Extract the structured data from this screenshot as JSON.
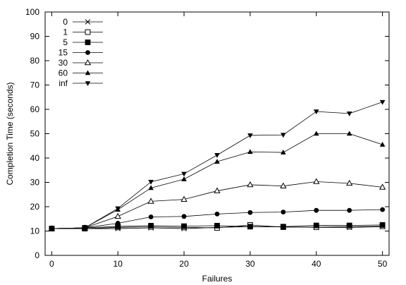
{
  "chart_data": {
    "type": "line",
    "title": "",
    "xlabel": "Failures",
    "ylabel": "Completion Time (seconds)",
    "xlim": [
      -1,
      51
    ],
    "ylim": [
      0,
      100
    ],
    "xticks": [
      0,
      10,
      20,
      30,
      40,
      50
    ],
    "yticks": [
      0,
      10,
      20,
      30,
      40,
      50,
      60,
      70,
      80,
      90,
      100
    ],
    "grid": false,
    "legend_position": "top-left",
    "x": [
      0,
      5,
      10,
      15,
      20,
      25,
      30,
      35,
      40,
      45,
      50
    ],
    "series": [
      {
        "name": "0",
        "marker": "x",
        "values": [
          11,
          11,
          11,
          11.3,
          11,
          11.5,
          11.8,
          11.7,
          11.5,
          11.5,
          11.8
        ]
      },
      {
        "name": "1",
        "marker": "square-open",
        "values": [
          11,
          11,
          11.5,
          11.7,
          11.5,
          11.3,
          12.5,
          11.6,
          11.6,
          11.8,
          12
        ]
      },
      {
        "name": "5",
        "marker": "square-filled",
        "values": [
          11,
          11.3,
          11.9,
          12.2,
          12,
          12.2,
          11.8,
          11.8,
          12.3,
          12.3,
          12.5
        ]
      },
      {
        "name": "15",
        "marker": "circle-filled",
        "values": [
          11,
          11.3,
          13.2,
          15.8,
          16,
          17,
          17.6,
          17.8,
          18.5,
          18.5,
          18.8
        ]
      },
      {
        "name": "30",
        "marker": "triangle-open",
        "values": [
          11,
          11.3,
          16,
          22.2,
          23,
          26.5,
          29,
          28.5,
          30.3,
          29.6,
          28
        ]
      },
      {
        "name": "60",
        "marker": "triangle-filled",
        "values": [
          11,
          11.3,
          18.8,
          27.7,
          31.3,
          38.5,
          42.5,
          42.3,
          50,
          50,
          45.5
        ]
      },
      {
        "name": "inf",
        "marker": "triangle-down-filled",
        "values": [
          11,
          11.3,
          19.3,
          30.2,
          33.5,
          41.2,
          49.3,
          49.5,
          59.1,
          58.3,
          63
        ]
      }
    ]
  }
}
